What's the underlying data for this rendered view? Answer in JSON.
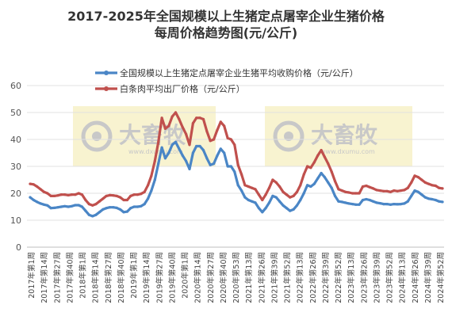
{
  "chart_data": {
    "type": "line",
    "title": "2017-2025年全国规模以上生猪定点屠宰企业生猪价格",
    "subtitle": "每周价格趋势图(元/公斤)",
    "xlabel": "",
    "ylabel": "",
    "ylim": [
      0,
      60
    ],
    "yticks": [
      0,
      10,
      20,
      30,
      40,
      50,
      60
    ],
    "grid": true,
    "legend_position": "top-left",
    "x_tick_labels": [
      "2017年第1周",
      "2017年第14周",
      "2017年第27周",
      "2017年第40周",
      "2018年第1周",
      "2018年第14周",
      "2018年第27周",
      "2018年第40周",
      "2019年第1周",
      "2019年第14周",
      "2019年第27周",
      "2019年第40周",
      "2020年第1周",
      "2020年第14周",
      "2020年第27周",
      "2020年第40周",
      "2020年第53周",
      "2021年第13周",
      "2021年第26周",
      "2021年第39周",
      "2021年第52周",
      "2022年第13周",
      "2022年第26周",
      "2022年第39周",
      "2022年第52周",
      "2023年第13周",
      "2023年第26周",
      "2023年第39周",
      "2023年第52周",
      "2024年第13周",
      "2024年第26周",
      "2024年第39周",
      "2024年第52周"
    ],
    "series": [
      {
        "name": "全国规模以上生猪定点屠宰企业生猪平均收购价格（元/公斤）",
        "color": "#4a86c6",
        "values": [
          18.5,
          17.5,
          16.8,
          16.2,
          15.8,
          15.5,
          14.5,
          14.6,
          14.8,
          15.0,
          15.2,
          15.0,
          15.2,
          15.6,
          15.6,
          15.0,
          13.5,
          12.0,
          11.5,
          12.0,
          13.0,
          14.0,
          14.5,
          14.8,
          14.8,
          14.6,
          14.0,
          13.0,
          13.2,
          14.5,
          15.0,
          15.0,
          15.2,
          16.0,
          18.0,
          21.0,
          25.0,
          31.0,
          37.0,
          33.0,
          35.0,
          38.0,
          39.0,
          36.5,
          34.0,
          32.0,
          29.0,
          35.0,
          37.5,
          37.5,
          36.0,
          33.0,
          30.5,
          31.0,
          34.0,
          36.5,
          35.0,
          30.0,
          30.0,
          28.0,
          23.0,
          21.0,
          18.5,
          17.5,
          17.0,
          16.5,
          14.5,
          13.0,
          14.5,
          16.5,
          19.0,
          18.5,
          17.0,
          15.5,
          14.5,
          13.5,
          14.0,
          15.5,
          17.5,
          20.0,
          23.0,
          22.5,
          23.5,
          25.5,
          27.5,
          26.0,
          24.0,
          22.0,
          19.0,
          17.0,
          16.8,
          16.5,
          16.2,
          16.0,
          15.8,
          15.8,
          17.5,
          17.8,
          17.5,
          17.0,
          16.5,
          16.3,
          16.0,
          16.0,
          15.8,
          16.0,
          15.9,
          16.0,
          16.2,
          17.0,
          19.0,
          21.0,
          20.5,
          19.5,
          18.5,
          18.0,
          17.8,
          17.5,
          17.0,
          16.8
        ]
      },
      {
        "name": "白条肉平均出厂价格（元/公斤）",
        "color": "#c0504d",
        "values": [
          23.5,
          23.3,
          22.5,
          21.5,
          20.5,
          20.0,
          19.0,
          19.0,
          19.2,
          19.5,
          19.5,
          19.3,
          19.5,
          19.5,
          20.0,
          19.5,
          17.5,
          16.0,
          15.5,
          16.0,
          17.0,
          18.0,
          19.0,
          19.3,
          19.2,
          19.0,
          18.5,
          17.5,
          17.5,
          19.0,
          19.5,
          19.5,
          19.8,
          20.5,
          23.0,
          26.5,
          32.0,
          39.0,
          48.0,
          44.0,
          45.0,
          48.5,
          50.0,
          47.5,
          44.5,
          42.0,
          38.0,
          46.0,
          48.0,
          48.0,
          47.5,
          43.0,
          39.5,
          40.0,
          43.5,
          46.5,
          45.0,
          40.5,
          40.0,
          38.0,
          30.5,
          27.0,
          23.0,
          22.5,
          22.0,
          21.5,
          19.5,
          17.5,
          19.5,
          22.0,
          25.0,
          24.0,
          22.5,
          20.5,
          19.5,
          18.5,
          19.0,
          20.5,
          23.0,
          27.0,
          30.0,
          29.5,
          31.5,
          34.0,
          36.0,
          33.5,
          31.0,
          28.0,
          24.5,
          21.5,
          21.0,
          20.5,
          20.3,
          20.0,
          20.0,
          20.0,
          22.5,
          22.8,
          22.3,
          21.8,
          21.2,
          21.0,
          20.8,
          20.8,
          20.5,
          21.0,
          20.8,
          21.0,
          21.2,
          22.0,
          24.0,
          26.5,
          26.0,
          25.0,
          24.0,
          23.5,
          23.0,
          22.8,
          22.0,
          21.8
        ]
      }
    ]
  },
  "watermark": {
    "brand": "大畜牧",
    "domain": "www.dxumu.com"
  }
}
